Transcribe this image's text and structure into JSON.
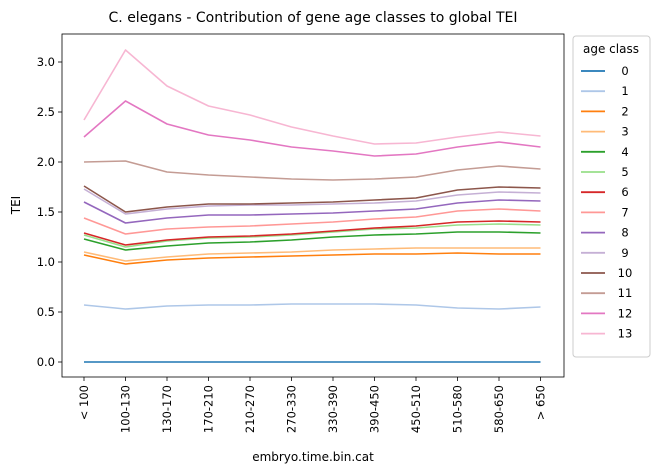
{
  "chart_data": {
    "type": "line",
    "title": "C. elegans - Contribution of gene age classes to global TEI",
    "xlabel": "embryo.time.bin.cat",
    "ylabel": "TEI",
    "ylim": [
      -0.15,
      3.28
    ],
    "yticks": [
      0.0,
      0.5,
      1.0,
      1.5,
      2.0,
      2.5,
      3.0
    ],
    "ytick_labels": [
      "0.0",
      "0.5",
      "1.0",
      "1.5",
      "2.0",
      "2.5",
      "3.0"
    ],
    "categories": [
      "< 100",
      "100-130",
      "130-170",
      "170-210",
      "210-270",
      "270-330",
      "330-390",
      "390-450",
      "450-510",
      "510-580",
      "580-650",
      "> 650"
    ],
    "grid": false,
    "legend": {
      "title": "age class",
      "placement": "outside-right"
    },
    "series": [
      {
        "name": "0",
        "color": "#1f77b4",
        "values": [
          0.0,
          0.0,
          0.0,
          0.0,
          0.0,
          0.0,
          0.0,
          0.0,
          0.0,
          0.0,
          0.0,
          0.0
        ]
      },
      {
        "name": "1",
        "color": "#aec7e8",
        "values": [
          0.57,
          0.53,
          0.56,
          0.57,
          0.57,
          0.58,
          0.58,
          0.58,
          0.57,
          0.54,
          0.53,
          0.55
        ]
      },
      {
        "name": "2",
        "color": "#ff7f0e",
        "values": [
          1.07,
          0.98,
          1.02,
          1.04,
          1.05,
          1.06,
          1.07,
          1.08,
          1.08,
          1.09,
          1.08,
          1.08
        ]
      },
      {
        "name": "3",
        "color": "#ffbb78",
        "values": [
          1.1,
          1.01,
          1.05,
          1.08,
          1.09,
          1.1,
          1.12,
          1.13,
          1.14,
          1.14,
          1.14,
          1.14
        ]
      },
      {
        "name": "4",
        "color": "#2ca02c",
        "values": [
          1.23,
          1.12,
          1.16,
          1.19,
          1.2,
          1.22,
          1.25,
          1.27,
          1.28,
          1.3,
          1.3,
          1.29
        ]
      },
      {
        "name": "5",
        "color": "#98df8a",
        "values": [
          1.27,
          1.15,
          1.21,
          1.24,
          1.25,
          1.27,
          1.3,
          1.33,
          1.34,
          1.37,
          1.38,
          1.37
        ]
      },
      {
        "name": "6",
        "color": "#d62728",
        "values": [
          1.29,
          1.17,
          1.22,
          1.25,
          1.26,
          1.28,
          1.31,
          1.34,
          1.36,
          1.4,
          1.41,
          1.4
        ]
      },
      {
        "name": "7",
        "color": "#ff9896",
        "values": [
          1.44,
          1.28,
          1.33,
          1.35,
          1.36,
          1.38,
          1.4,
          1.43,
          1.45,
          1.51,
          1.53,
          1.51
        ]
      },
      {
        "name": "8",
        "color": "#9467bd",
        "values": [
          1.6,
          1.39,
          1.44,
          1.47,
          1.47,
          1.48,
          1.49,
          1.51,
          1.53,
          1.59,
          1.62,
          1.61
        ]
      },
      {
        "name": "9",
        "color": "#c5b0d5",
        "values": [
          1.73,
          1.48,
          1.53,
          1.56,
          1.57,
          1.57,
          1.58,
          1.59,
          1.61,
          1.67,
          1.7,
          1.69
        ]
      },
      {
        "name": "10",
        "color": "#8c564b",
        "values": [
          1.76,
          1.5,
          1.55,
          1.58,
          1.58,
          1.59,
          1.6,
          1.62,
          1.64,
          1.72,
          1.75,
          1.74
        ]
      },
      {
        "name": "11",
        "color": "#c49c94",
        "values": [
          2.0,
          2.01,
          1.9,
          1.87,
          1.85,
          1.83,
          1.82,
          1.83,
          1.85,
          1.92,
          1.96,
          1.93
        ]
      },
      {
        "name": "12",
        "color": "#e377c2",
        "values": [
          2.25,
          2.61,
          2.38,
          2.27,
          2.22,
          2.15,
          2.11,
          2.06,
          2.08,
          2.15,
          2.2,
          2.15
        ]
      },
      {
        "name": "13",
        "color": "#f7b6d2",
        "values": [
          2.42,
          3.12,
          2.76,
          2.56,
          2.47,
          2.35,
          2.26,
          2.18,
          2.19,
          2.25,
          2.3,
          2.26
        ]
      }
    ]
  }
}
